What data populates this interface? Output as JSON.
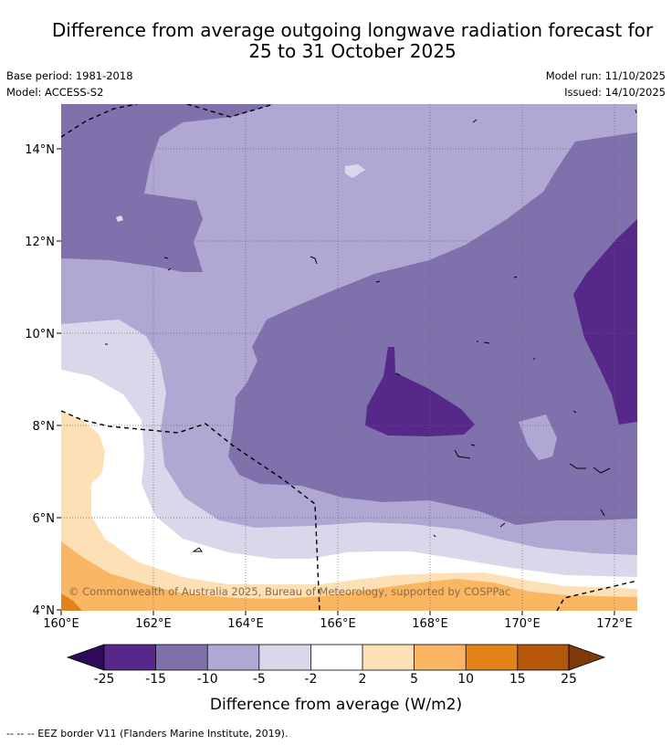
{
  "title_line1": "Difference from average outgoing longwave radiation forecast for",
  "title_line2": "25 to 31 October 2025",
  "base_period": "Base period: 1981-2018",
  "model": "Model: ACCESS-S2",
  "model_run": "Model run: 11/10/2025",
  "issued": "Issued: 14/10/2025",
  "copyright": "© Commonwealth of Australia 2025, Bureau of Meteorology, supported by COSPPac",
  "colorbar_title": "Difference from average (W/m2)",
  "footnote": "--  --  -- EEZ border V11 (Flanders Marine Institute, 2019).",
  "lat_labels": [
    "14°N",
    "12°N",
    "10°N",
    "8°N",
    "6°N",
    "4°N"
  ],
  "lon_labels": [
    "160°E",
    "162°E",
    "164°E",
    "166°E",
    "168°E",
    "170°E",
    "172°E"
  ],
  "colorbar_ticks": [
    "-25",
    "-15",
    "-10",
    "-5",
    "-2",
    "2",
    "5",
    "10",
    "15",
    "25"
  ],
  "colorbar_colors": [
    "#2d0a5a",
    "#55288a",
    "#7f72ac",
    "#b0a8d2",
    "#d9d8eb",
    "#ffffff",
    "#fde0b6",
    "#fbb663",
    "#e2841a",
    "#b45708",
    "#7f3a0c"
  ],
  "map_colors": {
    "dark_purple": "#55288a",
    "mid_purple": "#7f72ac",
    "light_purple": "#b0a8d2",
    "pale_purple": "#d9d8eb",
    "white": "#ffffff",
    "peach": "#fde0b6",
    "light_orange": "#fbb663",
    "orange": "#e2841a"
  }
}
